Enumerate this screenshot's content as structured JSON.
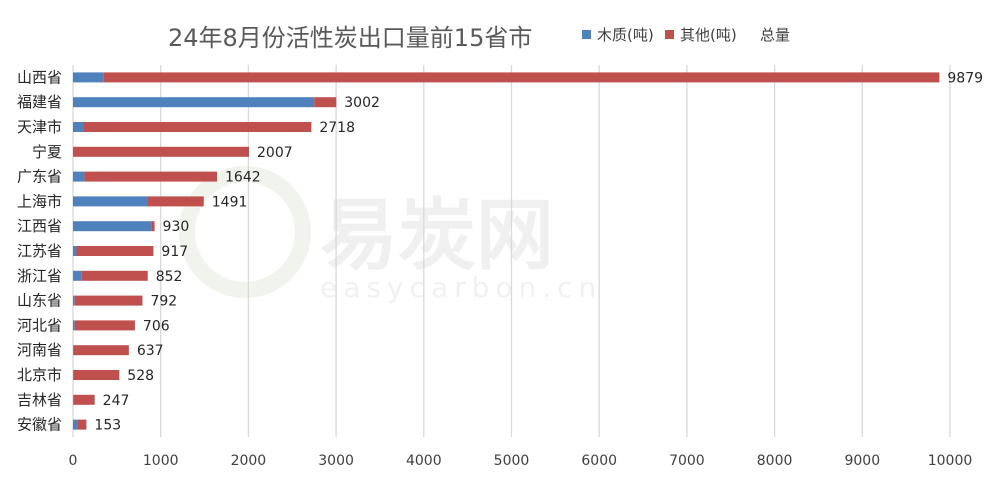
{
  "watermark": {
    "brand": "易炭网",
    "site": "easycarbon.cn"
  },
  "chart_data": {
    "type": "bar",
    "orientation": "horizontal",
    "stacked": true,
    "title": "24年8月份活性炭出口量前15省市",
    "categories": [
      "山西省",
      "福建省",
      "天津市",
      "宁夏",
      "广东省",
      "上海市",
      "江西省",
      "江苏省",
      "浙江省",
      "山东省",
      "河北省",
      "河南省",
      "北京市",
      "吉林省",
      "安徽省"
    ],
    "series": [
      {
        "name": "木质(吨)",
        "color": "#4f81bd",
        "values": [
          350,
          2750,
          120,
          0,
          130,
          850,
          900,
          40,
          100,
          20,
          20,
          10,
          10,
          10,
          50
        ]
      },
      {
        "name": "其他(吨)",
        "color": "#c0504d",
        "values": [
          9529,
          252,
          2598,
          2007,
          1512,
          641,
          30,
          877,
          752,
          772,
          686,
          627,
          518,
          237,
          103
        ]
      }
    ],
    "total_series_name": "总量",
    "totals": [
      9879,
      3002,
      2718,
      2007,
      1642,
      1491,
      930,
      917,
      852,
      792,
      706,
      637,
      528,
      247,
      153
    ],
    "xlim": [
      0,
      10000
    ],
    "xticks": [
      "0",
      "1000",
      "2000",
      "3000",
      "4000",
      "5000",
      "6000",
      "7000",
      "8000",
      "9000",
      "10000"
    ],
    "grid": true,
    "legend_position": "top-right"
  }
}
